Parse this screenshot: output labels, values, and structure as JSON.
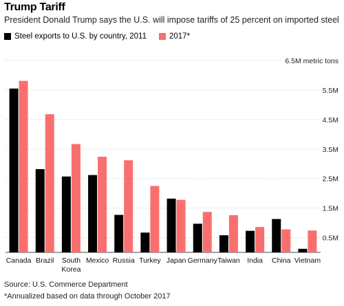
{
  "colors": {
    "series_2011": "#000000",
    "series_2017": "#f96f6f",
    "grid": "#c8c8c8"
  },
  "chart_data": {
    "type": "bar",
    "title": "Trump Tariff",
    "subtitle": "President Donald Trump says the U.S. will impose tariffs of 25 percent on imported steel",
    "categories": [
      "Canada",
      "Brazil",
      "South Korea",
      "Mexico",
      "Russia",
      "Turkey",
      "Japan",
      "Germany",
      "Taiwan",
      "India",
      "China",
      "Vietnam"
    ],
    "series": [
      {
        "name": "Steel exports to U.S. by country, 2011",
        "values": [
          5.55,
          2.82,
          2.57,
          2.62,
          1.27,
          0.67,
          1.82,
          0.97,
          0.58,
          0.73,
          1.13,
          0.12
        ]
      },
      {
        "name": "2017*",
        "values": [
          5.81,
          4.68,
          3.67,
          3.24,
          3.12,
          2.25,
          1.78,
          1.37,
          1.26,
          0.86,
          0.78,
          0.74
        ]
      }
    ],
    "yticks": [
      "0.5M",
      "1.5M",
      "2.5M",
      "3.5M",
      "4.5M",
      "5.5M",
      "6.5M metric tons"
    ],
    "ytick_values": [
      0.5,
      1.5,
      2.5,
      3.5,
      4.5,
      5.5,
      6.5
    ],
    "ylim": [
      0,
      6.5
    ],
    "grid": true,
    "legend": "top-left",
    "footer": {
      "source": "Source: U.S. Commerce Department",
      "note": "*Annualized based on data through October 2017"
    }
  }
}
